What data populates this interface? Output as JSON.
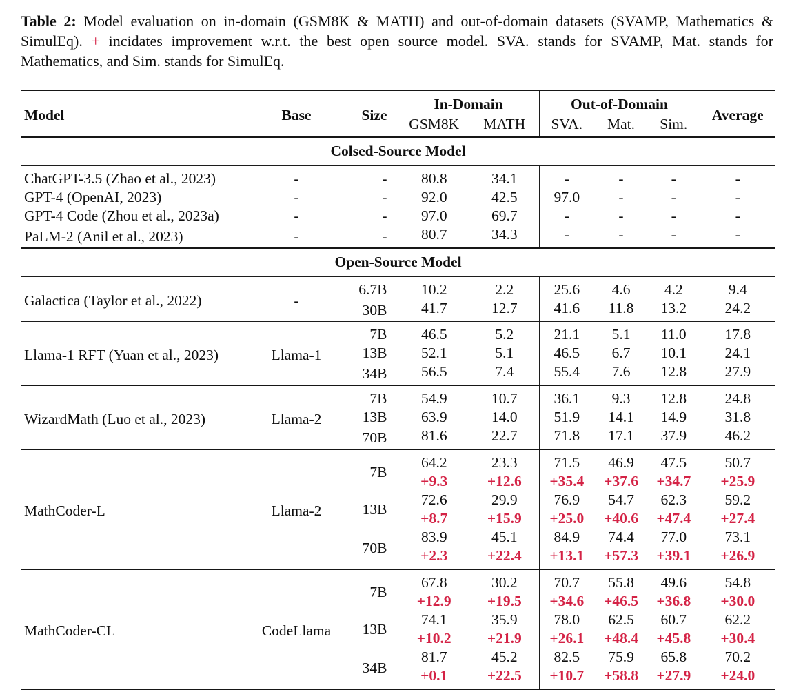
{
  "caption": {
    "label": "Table 2:",
    "text_before_plus": "  Model evaluation on in-domain (GSM8K & MATH) and out-of-domain datasets (SVAMP, Mathematics & SimulEq). ",
    "plus": "+",
    "text_after_plus": " incidates improvement w.r.t. the best open source model. SVA. stands for SVAMP, Mat. stands for Mathematics, and Sim. stands for SimulEq."
  },
  "colors": {
    "delta_red": "#d42245",
    "rule_black": "#161616"
  },
  "table": {
    "header": {
      "model": "Model",
      "base": "Base",
      "size": "Size",
      "in_domain": "In-Domain",
      "out_of_domain": "Out-of-Domain",
      "average": "Average",
      "sub": [
        "GSM8K",
        "MATH",
        "SVA.",
        "Mat.",
        "Sim."
      ]
    },
    "sections": [
      {
        "band": "Colsed-Source Model",
        "groups": [
          {
            "model": "ChatGPT-3.5 (Zhao et al., 2023)",
            "base": "-",
            "sizes": [
              {
                "size": "-",
                "main": [
                  "80.8",
                  "34.1",
                  "-",
                  "-",
                  "-",
                  "-"
                ]
              }
            ]
          },
          {
            "model": "GPT-4 (OpenAI, 2023)",
            "base": "-",
            "sizes": [
              {
                "size": "-",
                "main": [
                  "92.0",
                  "42.5",
                  "97.0",
                  "-",
                  "-",
                  "-"
                ]
              }
            ]
          },
          {
            "model": "GPT-4 Code (Zhou et al., 2023a)",
            "base": "-",
            "sizes": [
              {
                "size": "-",
                "main": [
                  "97.0",
                  "69.7",
                  "-",
                  "-",
                  "-",
                  "-"
                ]
              }
            ]
          },
          {
            "model": "PaLM-2 (Anil et al., 2023)",
            "base": "-",
            "sizes": [
              {
                "size": "-",
                "main": [
                  "80.7",
                  "34.3",
                  "-",
                  "-",
                  "-",
                  "-"
                ]
              }
            ]
          }
        ]
      },
      {
        "band": "Open-Source Model",
        "groups": [
          {
            "model": "Galactica (Taylor et al., 2022)",
            "base": "-",
            "sizes": [
              {
                "size": "6.7B",
                "main": [
                  "10.2",
                  "2.2",
                  "25.6",
                  "4.6",
                  "4.2",
                  "9.4"
                ]
              },
              {
                "size": "30B",
                "main": [
                  "41.7",
                  "12.7",
                  "41.6",
                  "11.8",
                  "13.2",
                  "24.2"
                ]
              }
            ]
          },
          {
            "model": "Llama-1 RFT (Yuan et al., 2023)",
            "base": "Llama-1",
            "sizes": [
              {
                "size": "7B",
                "main": [
                  "46.5",
                  "5.2",
                  "21.1",
                  "5.1",
                  "11.0",
                  "17.8"
                ]
              },
              {
                "size": "13B",
                "main": [
                  "52.1",
                  "5.1",
                  "46.5",
                  "6.7",
                  "10.1",
                  "24.1"
                ]
              },
              {
                "size": "34B",
                "main": [
                  "56.5",
                  "7.4",
                  "55.4",
                  "7.6",
                  "12.8",
                  "27.9"
                ]
              }
            ]
          },
          {
            "model": "WizardMath (Luo et al., 2023)",
            "base": "Llama-2",
            "sizes": [
              {
                "size": "7B",
                "main": [
                  "54.9",
                  "10.7",
                  "36.1",
                  "9.3",
                  "12.8",
                  "24.8"
                ]
              },
              {
                "size": "13B",
                "main": [
                  "63.9",
                  "14.0",
                  "51.9",
                  "14.1",
                  "14.9",
                  "31.8"
                ]
              },
              {
                "size": "70B",
                "main": [
                  "81.6",
                  "22.7",
                  "71.8",
                  "17.1",
                  "37.9",
                  "46.2"
                ]
              }
            ]
          },
          {
            "model": "MathCoder-L",
            "base": "Llama-2",
            "sizes": [
              {
                "size": "7B",
                "main": [
                  "64.2",
                  "23.3",
                  "71.5",
                  "46.9",
                  "47.5",
                  "50.7"
                ],
                "delta": [
                  "+9.3",
                  "+12.6",
                  "+35.4",
                  "+37.6",
                  "+34.7",
                  "+25.9"
                ]
              },
              {
                "size": "13B",
                "main": [
                  "72.6",
                  "29.9",
                  "76.9",
                  "54.7",
                  "62.3",
                  "59.2"
                ],
                "delta": [
                  "+8.7",
                  "+15.9",
                  "+25.0",
                  "+40.6",
                  "+47.4",
                  "+27.4"
                ]
              },
              {
                "size": "70B",
                "main": [
                  "83.9",
                  "45.1",
                  "84.9",
                  "74.4",
                  "77.0",
                  "73.1"
                ],
                "delta": [
                  "+2.3",
                  "+22.4",
                  "+13.1",
                  "+57.3",
                  "+39.1",
                  "+26.9"
                ]
              }
            ]
          },
          {
            "model": "MathCoder-CL",
            "base": "CodeLlama",
            "sizes": [
              {
                "size": "7B",
                "main": [
                  "67.8",
                  "30.2",
                  "70.7",
                  "55.8",
                  "49.6",
                  "54.8"
                ],
                "delta": [
                  "+12.9",
                  "+19.5",
                  "+34.6",
                  "+46.5",
                  "+36.8",
                  "+30.0"
                ]
              },
              {
                "size": "13B",
                "main": [
                  "74.1",
                  "35.9",
                  "78.0",
                  "62.5",
                  "60.7",
                  "62.2"
                ],
                "delta": [
                  "+10.2",
                  "+21.9",
                  "+26.1",
                  "+48.4",
                  "+45.8",
                  "+30.4"
                ]
              },
              {
                "size": "34B",
                "main": [
                  "81.7",
                  "45.2",
                  "82.5",
                  "75.9",
                  "65.8",
                  "70.2"
                ],
                "delta": [
                  "+0.1",
                  "+22.5",
                  "+10.7",
                  "+58.8",
                  "+27.9",
                  "+24.0"
                ]
              }
            ]
          }
        ]
      }
    ]
  }
}
